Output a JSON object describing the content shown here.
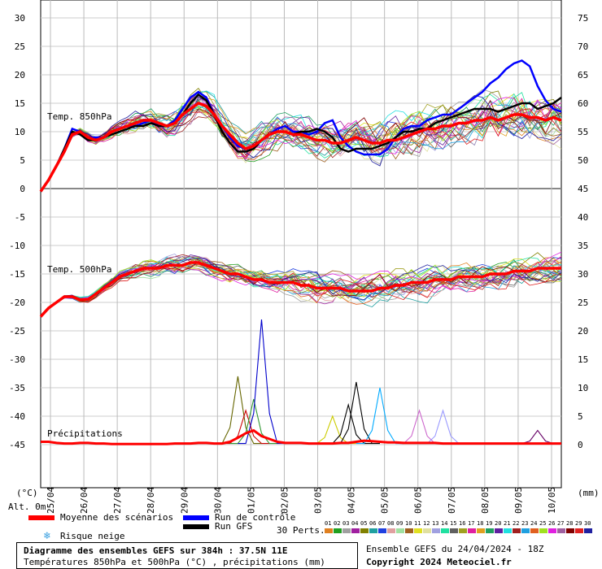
{
  "chart_data": {
    "type": "line",
    "title": "Diagramme des ensembles GEFS sur 384h : 37.5N 11E",
    "subtitle": "Températures 850hPa et 500hPa (°C) , précipitations (mm)",
    "left_axis": {
      "unit": "(°C)",
      "ticks": [
        30,
        25,
        20,
        15,
        10,
        5,
        0,
        -5,
        -10,
        -15,
        -20,
        -25,
        -30,
        -35,
        -40,
        -45
      ],
      "altitude_label": "Alt. 0m"
    },
    "right_axis": {
      "unit": "(mm)",
      "ticks": [
        75,
        70,
        65,
        60,
        55,
        50,
        45,
        40,
        35,
        30,
        25,
        20,
        15,
        10,
        5,
        0
      ]
    },
    "x_dates": [
      "25/04",
      "26/04",
      "27/04",
      "28/04",
      "29/04",
      "30/04",
      "01/05",
      "02/05",
      "03/05",
      "04/05",
      "05/05",
      "06/05",
      "07/05",
      "08/05",
      "09/05",
      "10/05"
    ],
    "panel_labels": {
      "t850": "Temp. 850hPa",
      "t500": "Temp. 500hPa",
      "precip": "Précipitations"
    },
    "series": [
      {
        "name": "Moyenne des scénarios",
        "color": "#ff0000"
      },
      {
        "name": "Run de contrôle",
        "color": "#0000ff"
      },
      {
        "name": "Run GFS",
        "color": "#000000"
      }
    ],
    "t850_mean": [
      -0.5,
      1.5,
      4,
      6.5,
      9.5,
      10,
      9,
      8.5,
      9,
      10,
      10.5,
      11,
      11.5,
      12,
      12,
      11.5,
      11,
      11.5,
      13,
      14,
      15,
      14.5,
      13,
      11,
      9.5,
      8,
      7,
      7.5,
      8.5,
      9.5,
      10,
      10,
      9.5,
      9.5,
      9,
      8.5,
      8.5,
      8,
      8,
      8.5,
      9,
      8.5,
      8,
      8,
      8.5,
      8.5,
      9,
      9.5,
      10,
      10.5,
      10.5,
      11,
      11,
      11.5,
      11.5,
      12,
      12,
      12.5,
      12,
      12.5,
      13,
      13,
      12.5,
      12.5,
      12,
      12.5,
      12
    ],
    "t850_gfs": [
      -0.5,
      1.5,
      4,
      7,
      10,
      9.5,
      8.5,
      8.5,
      9,
      9.5,
      10,
      10.5,
      11,
      11,
      11.5,
      11,
      11,
      11.5,
      13,
      15,
      16.5,
      15.5,
      13,
      10,
      8,
      6.5,
      6.5,
      7,
      8.5,
      9.5,
      10,
      10,
      9.5,
      10,
      10,
      10.5,
      10,
      9,
      7,
      6.5,
      7,
      7,
      7,
      7.5,
      8,
      9,
      10,
      10,
      10.5,
      10.5,
      11.5,
      12,
      12.5,
      13,
      13.5,
      14,
      14,
      14,
      13.5,
      14,
      14.5,
      15,
      15,
      14,
      14.5,
      15,
      16
    ],
    "t850_ctrl": [
      -0.5,
      1.5,
      4,
      7,
      10.5,
      10,
      9,
      9,
      9,
      10,
      10.5,
      11,
      11,
      11.5,
      12,
      11,
      11,
      12,
      14,
      16,
      17,
      16,
      13,
      11,
      9,
      7.5,
      7,
      7.5,
      8.5,
      9.5,
      10.5,
      11,
      10,
      10,
      9.5,
      10,
      11.5,
      12,
      9,
      7.5,
      6.5,
      6,
      6,
      6,
      7,
      9,
      10.5,
      11,
      11,
      12,
      12.5,
      13,
      13,
      14,
      15,
      16,
      17,
      18.5,
      19.5,
      21,
      22,
      22.5,
      21.5,
      18,
      15.5,
      14,
      13.5
    ],
    "t500_mean": [
      -22.5,
      -21,
      -20,
      -19,
      -19,
      -19.5,
      -19.5,
      -18.5,
      -17.5,
      -16.5,
      -15.5,
      -15,
      -14.5,
      -14,
      -14,
      -14,
      -13.5,
      -13.5,
      -13.5,
      -13,
      -13,
      -13.5,
      -14,
      -14.5,
      -15,
      -15,
      -15.5,
      -16,
      -16,
      -16.5,
      -16.5,
      -16.5,
      -16.5,
      -17,
      -17,
      -17.5,
      -17.5,
      -17.5,
      -17.5,
      -18,
      -18,
      -18,
      -18,
      -17.5,
      -17.5,
      -17,
      -17,
      -16.5,
      -16.5,
      -16.5,
      -16,
      -16,
      -16,
      -15.5,
      -15.5,
      -15.5,
      -15.5,
      -15,
      -15,
      -15,
      -14.5,
      -14.5,
      -14.5,
      -14,
      -14,
      -14,
      -14
    ],
    "precip_mean": [
      0.5,
      0.5,
      0.3,
      0.2,
      0.2,
      0.3,
      0.3,
      0.2,
      0.2,
      0.1,
      0.1,
      0.1,
      0.1,
      0.1,
      0.1,
      0.1,
      0.1,
      0.2,
      0.2,
      0.2,
      0.3,
      0.3,
      0.2,
      0.2,
      0.5,
      1.2,
      2,
      2.5,
      1.5,
      1,
      0.5,
      0.3,
      0.3,
      0.3,
      0.2,
      0.2,
      0.2,
      0.2,
      0.3,
      0.3,
      0.5,
      0.7,
      0.6,
      0.5,
      0.4,
      0.4,
      0.3,
      0.3,
      0.3,
      0.3,
      0.3,
      0.2,
      0.2,
      0.2,
      0.2,
      0.2,
      0.2,
      0.2,
      0.2,
      0.2,
      0.2,
      0.2,
      0.2,
      0.2,
      0.2,
      0.2,
      0.2
    ],
    "precip_peaks": [
      {
        "step": 25,
        "value": 12,
        "color": "#666600"
      },
      {
        "step": 26,
        "value": 6,
        "color": "#cc0000"
      },
      {
        "step": 27,
        "value": 8,
        "color": "#339933"
      },
      {
        "step": 28,
        "value": 22,
        "color": "#0000cc"
      },
      {
        "step": 37,
        "value": 5,
        "color": "#cccc00"
      },
      {
        "step": 39,
        "value": 7,
        "color": "#000000"
      },
      {
        "step": 40,
        "value": 11,
        "color": "#000000"
      },
      {
        "step": 43,
        "value": 10,
        "color": "#00aaff"
      },
      {
        "step": 48,
        "value": 6,
        "color": "#cc66cc"
      },
      {
        "step": 51,
        "value": 6,
        "color": "#9999ff"
      },
      {
        "step": 63,
        "value": 2.5,
        "color": "#660066"
      }
    ]
  },
  "legend": {
    "mean_label": "Moyenne des scénarios",
    "ctrl_label": "Run de contrôle",
    "gfs_label": "Run GFS",
    "snow_label": "Risque neige",
    "perts_label": "30 Perts.",
    "pert_numbers": [
      "01",
      "02",
      "03",
      "04",
      "05",
      "06",
      "07",
      "08",
      "09",
      "10",
      "11",
      "12",
      "13",
      "14",
      "15",
      "16",
      "17",
      "18",
      "19",
      "20",
      "21",
      "22",
      "23",
      "24",
      "25",
      "26",
      "27",
      "28",
      "29",
      "30"
    ],
    "pert_colors": [
      "#e08020",
      "#20a020",
      "#a0a0a0",
      "#a020a0",
      "#808000",
      "#20a0a0",
      "#2040e0",
      "#e0a0a0",
      "#a0e0a0",
      "#a06020",
      "#e0e020",
      "#e0e0a0",
      "#a0a0e0",
      "#20e0a0",
      "#606060",
      "#a0a020",
      "#e020a0",
      "#e0a020",
      "#20a060",
      "#6020a0",
      "#20e0e0",
      "#a02020",
      "#20a0e0",
      "#e06020",
      "#a0e020",
      "#e020e0",
      "#a060a0",
      "#800000",
      "#e02020",
      "#2020a0"
    ]
  },
  "footer": {
    "box_title": "Diagramme des ensembles GEFS sur 384h : 37.5N 11E",
    "box_subtitle": "Températures 850hPa et 500hPa (°C) , précipitations (mm)",
    "run_label": "Ensemble GEFS du 24/04/2024 - 18Z",
    "copyright": "Copyright 2024 Meteociel.fr"
  },
  "snow_icon": "snowflake-icon"
}
